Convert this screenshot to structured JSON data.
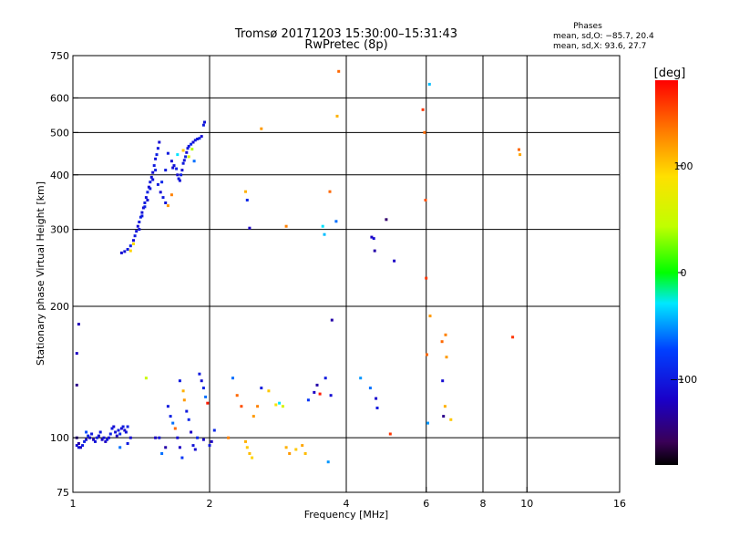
{
  "header": {
    "title_line1": "Tromsø 20171203 15:30:00–15:31:43",
    "title_line2": "RwPretec (8p)",
    "phase_block": {
      "label": "Phases",
      "line_o": "mean, sd,O: −85.7, 20.4",
      "line_x": "mean, sd,X:  93.6, 27.7"
    }
  },
  "colorbar": {
    "label": "[deg]",
    "range": [
      -180,
      180
    ],
    "ticks": [
      {
        "value": 100,
        "label": "100"
      },
      {
        "value": 0,
        "label": "0"
      },
      {
        "value": -100,
        "label": "−100"
      }
    ]
  },
  "chart_data": {
    "type": "scatter",
    "title": "Tromsø 20171203 15:30:00–15:31:43",
    "subtitle": "RwPretec (8p)",
    "xlabel": "Frequency [MHz]",
    "ylabel": "Stationary phase Virtual Height [km]",
    "x_scale": "log2",
    "y_scale": "log",
    "xlim": [
      1,
      16
    ],
    "ylim": [
      75,
      750
    ],
    "x_ticks": [
      {
        "value": 1,
        "label": "1"
      },
      {
        "value": 2,
        "label": "2"
      },
      {
        "value": 4,
        "label": "4"
      },
      {
        "value": 6,
        "label": "6"
      },
      {
        "value": 8,
        "label": "8"
      },
      {
        "value": 10,
        "label": "10"
      },
      {
        "value": 16,
        "label": "16"
      }
    ],
    "y_ticks": [
      {
        "value": 75,
        "label": "75"
      },
      {
        "value": 100,
        "label": "100"
      },
      {
        "value": 200,
        "label": "200"
      },
      {
        "value": 300,
        "label": "300"
      },
      {
        "value": 400,
        "label": "400"
      },
      {
        "value": 500,
        "label": "500"
      },
      {
        "value": 600,
        "label": "600"
      },
      {
        "value": 750,
        "label": "750"
      }
    ],
    "grid_x": [
      2,
      4,
      6,
      8,
      10
    ],
    "grid_y": [
      100,
      200,
      300,
      400,
      500,
      600
    ],
    "color_variable": "phase [deg]",
    "points": [
      [
        1.02,
        96,
        -110
      ],
      [
        1.03,
        95,
        -105
      ],
      [
        1.04,
        95,
        -120
      ],
      [
        1.05,
        96,
        -100
      ],
      [
        1.06,
        98,
        -95
      ],
      [
        1.07,
        99,
        -110
      ],
      [
        1.08,
        101,
        -90
      ],
      [
        1.09,
        100,
        -115
      ],
      [
        1.1,
        102,
        -100
      ],
      [
        1.11,
        99,
        -120
      ],
      [
        1.12,
        98,
        -105
      ],
      [
        1.13,
        100,
        -95
      ],
      [
        1.14,
        101,
        -110
      ],
      [
        1.15,
        103,
        -100
      ],
      [
        1.16,
        99,
        -115
      ],
      [
        1.17,
        100,
        -105
      ],
      [
        1.18,
        98,
        -120
      ],
      [
        1.19,
        99,
        -100
      ],
      [
        1.2,
        100,
        -110
      ],
      [
        1.21,
        102,
        -95
      ],
      [
        1.22,
        105,
        -100
      ],
      [
        1.23,
        106,
        -110
      ],
      [
        1.24,
        103,
        -105
      ],
      [
        1.25,
        101,
        -120
      ],
      [
        1.26,
        104,
        -100
      ],
      [
        1.27,
        102,
        -90
      ],
      [
        1.28,
        105,
        -110
      ],
      [
        1.29,
        106,
        -100
      ],
      [
        1.3,
        104,
        -115
      ],
      [
        1.31,
        103,
        -105
      ],
      [
        1.32,
        106,
        -95
      ],
      [
        1.07,
        103,
        -70
      ],
      [
        1.27,
        95,
        -60
      ],
      [
        1.03,
        97,
        -130
      ],
      [
        1.02,
        156,
        -120
      ],
      [
        1.03,
        182,
        -125
      ],
      [
        1.02,
        132,
        -140
      ],
      [
        1.02,
        100,
        -135
      ],
      [
        1.28,
        265,
        -110
      ],
      [
        1.3,
        267,
        -105
      ],
      [
        1.32,
        270,
        -100
      ],
      [
        1.34,
        275,
        -95
      ],
      [
        1.36,
        283,
        -110
      ],
      [
        1.37,
        290,
        -100
      ],
      [
        1.38,
        297,
        -105
      ],
      [
        1.39,
        305,
        -110
      ],
      [
        1.4,
        312,
        -100
      ],
      [
        1.41,
        320,
        -95
      ],
      [
        1.42,
        328,
        -105
      ],
      [
        1.43,
        336,
        -110
      ],
      [
        1.44,
        345,
        -100
      ],
      [
        1.45,
        355,
        -105
      ],
      [
        1.46,
        365,
        -95
      ],
      [
        1.47,
        375,
        -110
      ],
      [
        1.48,
        385,
        -100
      ],
      [
        1.49,
        395,
        -105
      ],
      [
        1.5,
        405,
        -110
      ],
      [
        1.51,
        420,
        -100
      ],
      [
        1.52,
        435,
        -105
      ],
      [
        1.53,
        445,
        -95
      ],
      [
        1.54,
        460,
        -100
      ],
      [
        1.55,
        475,
        -110
      ],
      [
        1.4,
        300,
        -105
      ],
      [
        1.42,
        322,
        -100
      ],
      [
        1.44,
        338,
        -95
      ],
      [
        1.46,
        350,
        -110
      ],
      [
        1.48,
        372,
        -100
      ],
      [
        1.5,
        390,
        -105
      ],
      [
        1.52,
        410,
        -95
      ],
      [
        1.54,
        380,
        -100
      ],
      [
        1.56,
        365,
        -110
      ],
      [
        1.58,
        355,
        -100
      ],
      [
        1.6,
        345,
        -105
      ],
      [
        1.34,
        268,
        95
      ],
      [
        1.36,
        278,
        90
      ],
      [
        1.57,
        385,
        -90
      ],
      [
        1.6,
        410,
        -100
      ],
      [
        1.62,
        340,
        120
      ],
      [
        1.65,
        360,
        130
      ],
      [
        1.66,
        415,
        -110
      ],
      [
        1.62,
        448,
        -100
      ],
      [
        1.65,
        430,
        -110
      ],
      [
        1.67,
        420,
        -105
      ],
      [
        1.69,
        413,
        -95
      ],
      [
        1.7,
        400,
        -110
      ],
      [
        1.71,
        392,
        -100
      ],
      [
        1.72,
        388,
        -105
      ],
      [
        1.73,
        400,
        -95
      ],
      [
        1.74,
        410,
        -110
      ],
      [
        1.75,
        425,
        -100
      ],
      [
        1.76,
        432,
        -105
      ],
      [
        1.77,
        440,
        -95
      ],
      [
        1.78,
        450,
        -110
      ],
      [
        1.79,
        460,
        -100
      ],
      [
        1.8,
        465,
        -105
      ],
      [
        1.82,
        470,
        -90
      ],
      [
        1.84,
        475,
        -110
      ],
      [
        1.86,
        480,
        -100
      ],
      [
        1.88,
        483,
        -105
      ],
      [
        1.9,
        485,
        -95
      ],
      [
        1.92,
        490,
        -110
      ],
      [
        1.94,
        520,
        -100
      ],
      [
        1.95,
        528,
        -105
      ],
      [
        1.8,
        440,
        60
      ],
      [
        1.83,
        458,
        40
      ],
      [
        1.75,
        455,
        100
      ],
      [
        1.7,
        445,
        -30
      ],
      [
        1.85,
        430,
        -60
      ],
      [
        1.32,
        97,
        -100
      ],
      [
        1.34,
        100,
        -110
      ],
      [
        1.45,
        137,
        50
      ],
      [
        1.52,
        100,
        -120
      ],
      [
        1.55,
        100,
        -105
      ],
      [
        1.6,
        95,
        -130
      ],
      [
        1.62,
        118,
        -100
      ],
      [
        1.64,
        112,
        -95
      ],
      [
        1.66,
        108,
        -60
      ],
      [
        1.68,
        105,
        140
      ],
      [
        1.7,
        100,
        -110
      ],
      [
        1.72,
        95,
        -120
      ],
      [
        1.74,
        90,
        -80
      ],
      [
        1.75,
        128,
        110
      ],
      [
        1.76,
        122,
        120
      ],
      [
        1.78,
        115,
        -100
      ],
      [
        1.8,
        110,
        -90
      ],
      [
        1.82,
        103,
        -120
      ],
      [
        1.84,
        96,
        -105
      ],
      [
        1.86,
        94,
        -110
      ],
      [
        1.88,
        100,
        -90
      ],
      [
        1.9,
        140,
        -100
      ],
      [
        1.92,
        135,
        -110
      ],
      [
        1.94,
        130,
        -95
      ],
      [
        1.96,
        124,
        -60
      ],
      [
        1.98,
        120,
        170
      ],
      [
        2.0,
        96,
        -100
      ],
      [
        2.02,
        98,
        -120
      ],
      [
        2.05,
        104,
        -90
      ],
      [
        1.94,
        99,
        -115
      ],
      [
        1.72,
        135,
        -100
      ],
      [
        1.57,
        92,
        -60
      ],
      [
        2.2,
        100,
        130
      ],
      [
        2.25,
        137,
        -60
      ],
      [
        2.3,
        125,
        140
      ],
      [
        2.35,
        118,
        150
      ],
      [
        2.4,
        98,
        110
      ],
      [
        2.42,
        95,
        100
      ],
      [
        2.45,
        92,
        105
      ],
      [
        2.48,
        90,
        95
      ],
      [
        2.5,
        112,
        120
      ],
      [
        2.55,
        118,
        130
      ],
      [
        2.6,
        130,
        -100
      ],
      [
        2.7,
        128,
        100
      ],
      [
        2.8,
        119,
        85
      ],
      [
        2.85,
        120,
        -30
      ],
      [
        2.9,
        118,
        60
      ],
      [
        2.95,
        95,
        110
      ],
      [
        3.0,
        92,
        120
      ],
      [
        3.1,
        94,
        100
      ],
      [
        3.2,
        96,
        115
      ],
      [
        3.25,
        92,
        105
      ],
      [
        3.3,
        122,
        -80
      ],
      [
        3.4,
        127,
        -120
      ],
      [
        3.45,
        132,
        -130
      ],
      [
        3.5,
        126,
        170
      ],
      [
        3.6,
        137,
        -100
      ],
      [
        3.65,
        88,
        -50
      ],
      [
        3.7,
        125,
        -110
      ],
      [
        2.4,
        366,
        110
      ],
      [
        2.42,
        350,
        -90
      ],
      [
        2.45,
        302,
        -120
      ],
      [
        2.6,
        510,
        120
      ],
      [
        2.95,
        305,
        130
      ],
      [
        3.55,
        305,
        -30
      ],
      [
        3.58,
        292,
        -40
      ],
      [
        3.68,
        366,
        140
      ],
      [
        3.72,
        186,
        -130
      ],
      [
        3.8,
        313,
        -60
      ],
      [
        3.82,
        545,
        110
      ],
      [
        3.85,
        690,
        140
      ],
      [
        4.3,
        137,
        -50
      ],
      [
        4.52,
        130,
        -60
      ],
      [
        4.55,
        288,
        -120
      ],
      [
        4.6,
        286,
        -110
      ],
      [
        4.62,
        268,
        -130
      ],
      [
        4.65,
        123,
        -115
      ],
      [
        4.68,
        117,
        -100
      ],
      [
        4.9,
        316,
        -150
      ],
      [
        5.0,
        102,
        160
      ],
      [
        5.1,
        254,
        -120
      ],
      [
        5.9,
        564,
        160
      ],
      [
        5.95,
        500,
        140
      ],
      [
        5.98,
        350,
        150
      ],
      [
        6.0,
        232,
        160
      ],
      [
        6.02,
        155,
        140
      ],
      [
        6.05,
        108,
        -50
      ],
      [
        6.1,
        645,
        -40
      ],
      [
        6.12,
        190,
        120
      ],
      [
        6.5,
        166,
        140
      ],
      [
        6.52,
        135,
        -110
      ],
      [
        6.55,
        112,
        -140
      ],
      [
        6.6,
        118,
        110
      ],
      [
        6.62,
        172,
        130
      ],
      [
        6.65,
        153,
        120
      ],
      [
        6.8,
        110,
        100
      ],
      [
        9.3,
        170,
        160
      ],
      [
        9.6,
        457,
        140
      ],
      [
        9.65,
        445,
        115
      ]
    ]
  }
}
